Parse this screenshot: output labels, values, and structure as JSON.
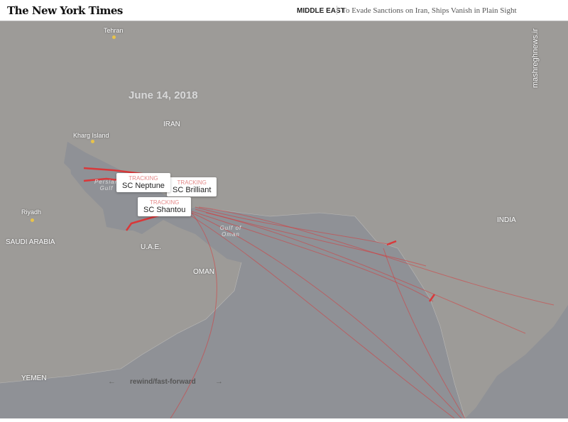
{
  "header": {
    "logo": "The New York Times",
    "section": "MIDDLE EAST",
    "headline": "To Evade Sanctions on Iran, Ships Vanish in Plain Sight"
  },
  "watermark": "mashreghnews.ir",
  "map": {
    "date": "June 14, 2018",
    "countries": [
      "IRAN",
      "SAUDI ARABIA",
      "U.A.E.",
      "OMAN",
      "YEMEN",
      "INDIA"
    ],
    "cities": [
      "Tehran",
      "Kharg Island",
      "Riyadh"
    ],
    "waters": [
      "Persian Gulf",
      "Gulf of Oman"
    ],
    "route_color": "#d9383a",
    "tooltips": [
      {
        "status": "TRACKING",
        "ship": "SC Neptune"
      },
      {
        "status": "TRACKING",
        "ship": "SC Brilliant"
      },
      {
        "status": "TRACKING",
        "ship": "SC Shantou"
      }
    ]
  },
  "controls": {
    "label": "rewind/fast-forward",
    "back": "←",
    "forward": "→"
  }
}
